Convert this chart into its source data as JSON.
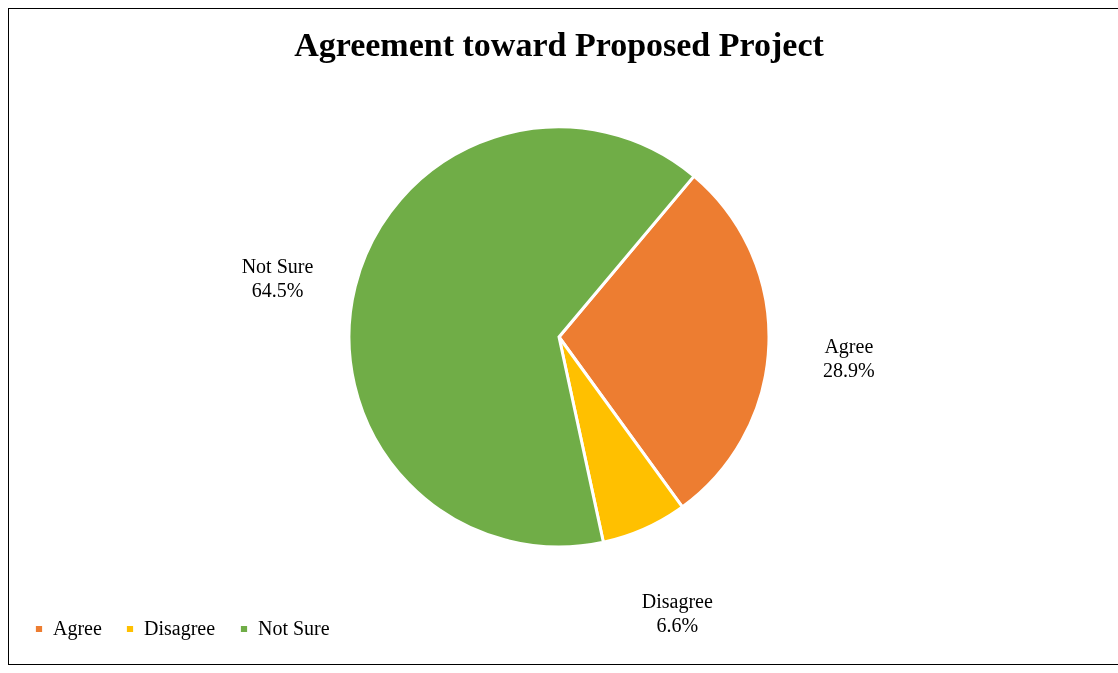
{
  "chart_data": {
    "type": "pie",
    "title": "Agreement toward Proposed Project",
    "categories": [
      "Agree",
      "Disagree",
      "Not Sure"
    ],
    "values": [
      28.9,
      6.6,
      64.5
    ],
    "value_labels": [
      "28.9%",
      "6.6%",
      "64.5%"
    ],
    "colors": [
      "#ed7d31",
      "#ffc000",
      "#70ad47"
    ],
    "legend": "bottom"
  }
}
